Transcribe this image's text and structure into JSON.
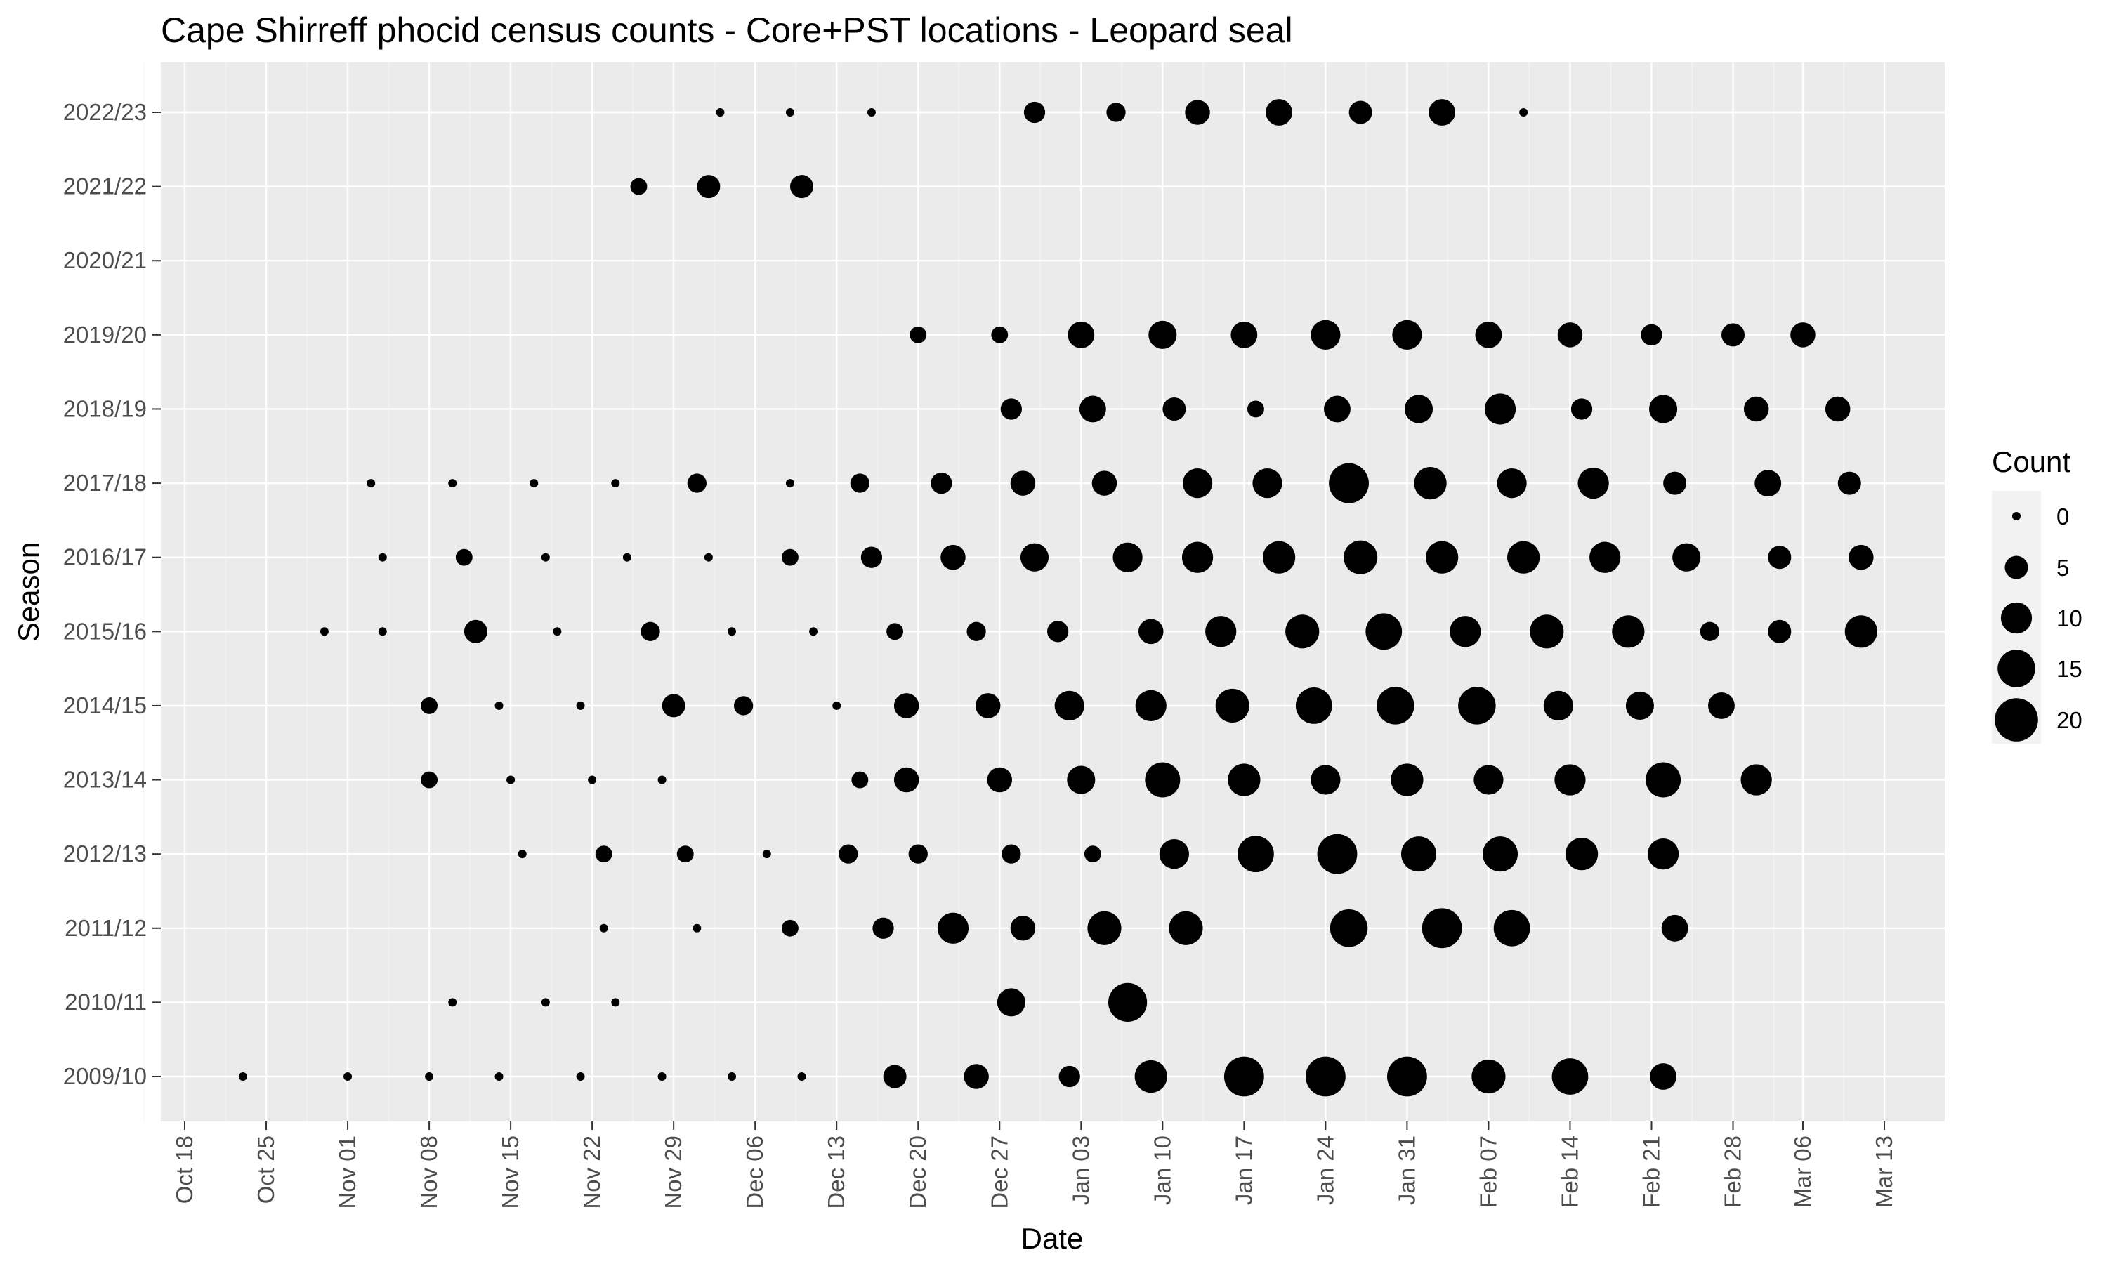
{
  "chart_data": {
    "type": "scatter",
    "title": "Cape Shirreff phocid census counts - Core+PST locations - Leopard seal",
    "xlabel": "Date",
    "ylabel": "Season",
    "x_tick_labels": [
      "Oct 18",
      "Oct 25",
      "Nov 01",
      "Nov 08",
      "Nov 15",
      "Nov 22",
      "Nov 29",
      "Dec 06",
      "Dec 13",
      "Dec 20",
      "Dec 27",
      "Jan 03",
      "Jan 10",
      "Jan 17",
      "Jan 24",
      "Jan 31",
      "Feb 07",
      "Feb 14",
      "Feb 21",
      "Feb 28",
      "Mar 06",
      "Mar 13"
    ],
    "seasons": [
      "2009/10",
      "2010/11",
      "2011/12",
      "2012/13",
      "2013/14",
      "2014/15",
      "2015/16",
      "2016/17",
      "2017/18",
      "2018/19",
      "2019/20",
      "2020/21",
      "2021/22",
      "2022/23"
    ],
    "legend": {
      "title": "Count",
      "values": [
        0,
        5,
        10,
        15,
        20
      ],
      "placement": "right"
    },
    "grid": true,
    "series": [
      {
        "season": "2009/10",
        "points": [
          [
            "Oct 23",
            0
          ],
          [
            "Nov 01",
            0
          ],
          [
            "Nov 08",
            0
          ],
          [
            "Nov 14",
            0
          ],
          [
            "Nov 21",
            0
          ],
          [
            "Nov 28",
            0
          ],
          [
            "Dec 04",
            0
          ],
          [
            "Dec 10",
            0
          ],
          [
            "Dec 18",
            5
          ],
          [
            "Dec 25",
            6
          ],
          [
            "Jan 02",
            4
          ],
          [
            "Jan 09",
            11
          ],
          [
            "Jan 17",
            17
          ],
          [
            "Jan 24",
            17
          ],
          [
            "Jan 31",
            17
          ],
          [
            "Feb 07",
            12
          ],
          [
            "Feb 14",
            14
          ],
          [
            "Feb 22",
            7
          ]
        ]
      },
      {
        "season": "2010/11",
        "points": [
          [
            "Nov 10",
            0
          ],
          [
            "Nov 18",
            0
          ],
          [
            "Nov 24",
            0
          ],
          [
            "Dec 28",
            8
          ],
          [
            "Jan 07",
            16
          ]
        ]
      },
      {
        "season": "2011/12",
        "points": [
          [
            "Nov 23",
            0
          ],
          [
            "Dec 01",
            0
          ],
          [
            "Dec 09",
            2
          ],
          [
            "Dec 17",
            4
          ],
          [
            "Dec 23",
            10
          ],
          [
            "Dec 29",
            6
          ],
          [
            "Jan 05",
            12
          ],
          [
            "Jan 12",
            12
          ],
          [
            "Jan 26",
            15
          ],
          [
            "Feb 03",
            17
          ],
          [
            "Feb 09",
            14
          ],
          [
            "Feb 23",
            7
          ]
        ]
      },
      {
        "season": "2012/13",
        "points": [
          [
            "Nov 16",
            0
          ],
          [
            "Nov 23",
            2
          ],
          [
            "Nov 30",
            2
          ],
          [
            "Dec 07",
            0
          ],
          [
            "Dec 14",
            3
          ],
          [
            "Dec 20",
            3
          ],
          [
            "Dec 28",
            3
          ],
          [
            "Jan 04",
            2
          ],
          [
            "Jan 11",
            9
          ],
          [
            "Jan 18",
            14
          ],
          [
            "Jan 25",
            17
          ],
          [
            "Feb 01",
            13
          ],
          [
            "Feb 08",
            13
          ],
          [
            "Feb 15",
            11
          ],
          [
            "Feb 22",
            10
          ]
        ]
      },
      {
        "season": "2013/14",
        "points": [
          [
            "Nov 08",
            2
          ],
          [
            "Nov 15",
            0
          ],
          [
            "Nov 22",
            0
          ],
          [
            "Nov 28",
            0
          ],
          [
            "Dec 15",
            2
          ],
          [
            "Dec 19",
            6
          ],
          [
            "Dec 27",
            6
          ],
          [
            "Jan 03",
            8
          ],
          [
            "Jan 10",
            13
          ],
          [
            "Jan 17",
            11
          ],
          [
            "Jan 24",
            9
          ],
          [
            "Jan 31",
            11
          ],
          [
            "Feb 07",
            9
          ],
          [
            "Feb 14",
            10
          ],
          [
            "Feb 22",
            13
          ],
          [
            "Mar 02",
            10
          ]
        ]
      },
      {
        "season": "2014/15",
        "points": [
          [
            "Nov 08",
            2
          ],
          [
            "Nov 14",
            0
          ],
          [
            "Nov 21",
            0
          ],
          [
            "Nov 29",
            5
          ],
          [
            "Dec 05",
            3
          ],
          [
            "Dec 13",
            0
          ],
          [
            "Dec 19",
            6
          ],
          [
            "Dec 26",
            6
          ],
          [
            "Jan 02",
            9
          ],
          [
            "Jan 09",
            10
          ],
          [
            "Jan 16",
            12
          ],
          [
            "Jan 23",
            14
          ],
          [
            "Jan 30",
            15
          ],
          [
            "Feb 06",
            15
          ],
          [
            "Feb 13",
            9
          ],
          [
            "Feb 20",
            8
          ],
          [
            "Feb 27",
            7
          ]
        ]
      },
      {
        "season": "2015/16",
        "points": [
          [
            "Oct 30",
            0
          ],
          [
            "Nov 04",
            0
          ],
          [
            "Nov 12",
            5
          ],
          [
            "Nov 19",
            0
          ],
          [
            "Nov 27",
            3
          ],
          [
            "Dec 04",
            0
          ],
          [
            "Dec 11",
            0
          ],
          [
            "Dec 18",
            2
          ],
          [
            "Dec 25",
            3
          ],
          [
            "Jan 01",
            4
          ],
          [
            "Jan 09",
            6
          ],
          [
            "Jan 15",
            10
          ],
          [
            "Jan 22",
            12
          ],
          [
            "Jan 29",
            14
          ],
          [
            "Feb 05",
            10
          ],
          [
            "Feb 12",
            12
          ],
          [
            "Feb 19",
            11
          ],
          [
            "Feb 26",
            3
          ],
          [
            "Mar 04",
            5
          ],
          [
            "Mar 11",
            11
          ]
        ]
      },
      {
        "season": "2016/17",
        "points": [
          [
            "Nov 04",
            0
          ],
          [
            "Nov 11",
            2
          ],
          [
            "Nov 18",
            0
          ],
          [
            "Nov 25",
            0
          ],
          [
            "Dec 02",
            0
          ],
          [
            "Dec 09",
            2
          ],
          [
            "Dec 16",
            4
          ],
          [
            "Dec 23",
            6
          ],
          [
            "Dec 30",
            8
          ],
          [
            "Jan 07",
            9
          ],
          [
            "Jan 13",
            10
          ],
          [
            "Jan 20",
            11
          ],
          [
            "Jan 27",
            12
          ],
          [
            "Feb 03",
            11
          ],
          [
            "Feb 10",
            11
          ],
          [
            "Feb 17",
            10
          ],
          [
            "Feb 24",
            8
          ],
          [
            "Mar 04",
            5
          ],
          [
            "Mar 11",
            6
          ]
        ]
      },
      {
        "season": "2017/18",
        "points": [
          [
            "Nov 03",
            0
          ],
          [
            "Nov 10",
            0
          ],
          [
            "Nov 17",
            0
          ],
          [
            "Nov 24",
            0
          ],
          [
            "Dec 01",
            3
          ],
          [
            "Dec 09",
            0
          ],
          [
            "Dec 15",
            3
          ],
          [
            "Dec 22",
            4
          ],
          [
            "Dec 29",
            6
          ],
          [
            "Jan 05",
            6
          ],
          [
            "Jan 13",
            9
          ],
          [
            "Jan 19",
            9
          ],
          [
            "Jan 26",
            17
          ],
          [
            "Feb 02",
            11
          ],
          [
            "Feb 09",
            9
          ],
          [
            "Feb 16",
            10
          ],
          [
            "Feb 23",
            5
          ],
          [
            "Mar 03",
            7
          ],
          [
            "Mar 10",
            5
          ]
        ]
      },
      {
        "season": "2018/19",
        "points": [
          [
            "Dec 28",
            4
          ],
          [
            "Jan 04",
            7
          ],
          [
            "Jan 11",
            5
          ],
          [
            "Jan 18",
            2
          ],
          [
            "Jan 25",
            7
          ],
          [
            "Feb 01",
            8
          ],
          [
            "Feb 08",
            10
          ],
          [
            "Feb 15",
            4
          ],
          [
            "Feb 22",
            8
          ],
          [
            "Mar 02",
            6
          ],
          [
            "Mar 09",
            6
          ]
        ]
      },
      {
        "season": "2019/20",
        "points": [
          [
            "Dec 20",
            2
          ],
          [
            "Dec 27",
            2
          ],
          [
            "Jan 03",
            7
          ],
          [
            "Jan 10",
            8
          ],
          [
            "Jan 17",
            7
          ],
          [
            "Jan 24",
            9
          ],
          [
            "Jan 31",
            9
          ],
          [
            "Feb 07",
            7
          ],
          [
            "Feb 14",
            6
          ],
          [
            "Feb 21",
            4
          ],
          [
            "Feb 28",
            5
          ],
          [
            "Mar 06",
            6
          ]
        ]
      },
      {
        "season": "2020/21",
        "points": []
      },
      {
        "season": "2021/22",
        "points": [
          [
            "Nov 26",
            2
          ],
          [
            "Dec 02",
            5
          ],
          [
            "Dec 10",
            5
          ]
        ]
      },
      {
        "season": "2022/23",
        "points": [
          [
            "Dec 03",
            0
          ],
          [
            "Dec 09",
            0
          ],
          [
            "Dec 16",
            0
          ],
          [
            "Dec 30",
            4
          ],
          [
            "Jan 06",
            3
          ],
          [
            "Jan 13",
            6
          ],
          [
            "Jan 20",
            7
          ],
          [
            "Jan 27",
            5
          ],
          [
            "Feb 03",
            7
          ],
          [
            "Feb 10",
            0
          ]
        ]
      }
    ]
  }
}
